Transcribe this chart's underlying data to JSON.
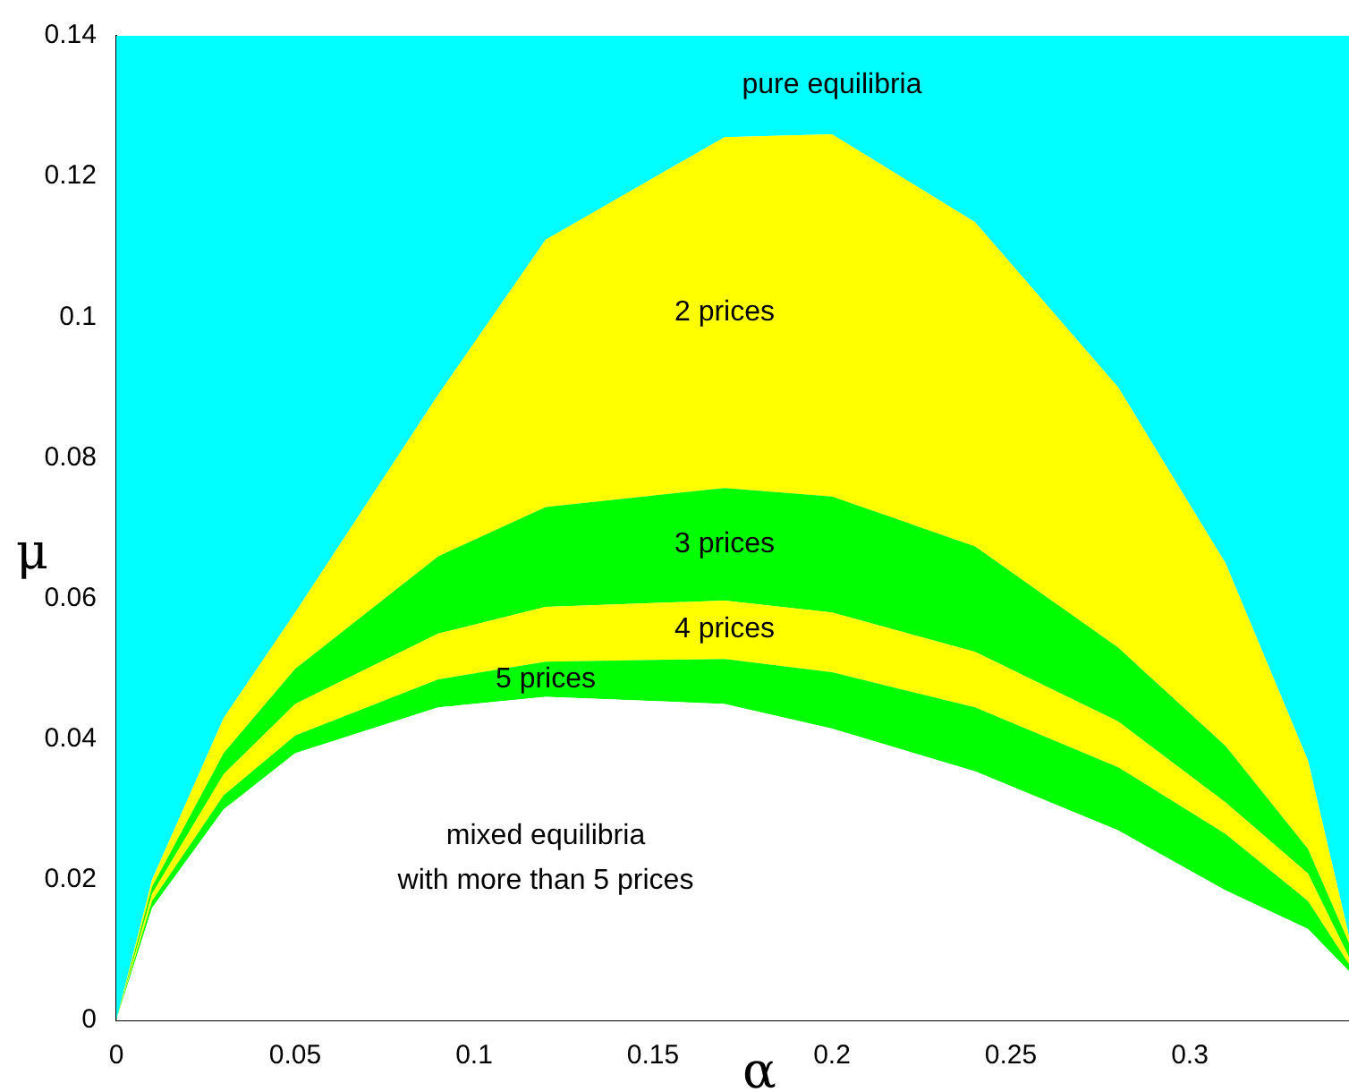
{
  "chart_data": {
    "type": "area",
    "xlabel": "α",
    "ylabel": "μ",
    "x": [
      0,
      0.01,
      0.03,
      0.05,
      0.09,
      0.12,
      0.17,
      0.2,
      0.24,
      0.28,
      0.31,
      0.333,
      0.3445
    ],
    "series": [
      {
        "name": "mixed equilibria\nwith more than 5 prices",
        "color": "#ffffff",
        "values": [
          0,
          0.016,
          0.03,
          0.038,
          0.0445,
          0.046,
          0.045,
          0.0415,
          0.0354,
          0.027,
          0.0185,
          0.013,
          0.007
        ]
      },
      {
        "name": "5 prices",
        "color": "#00ff00",
        "values": [
          0,
          0.017,
          0.032,
          0.0405,
          0.0485,
          0.051,
          0.0514,
          0.0495,
          0.0445,
          0.036,
          0.0265,
          0.017,
          0.008
        ]
      },
      {
        "name": "4 prices",
        "color": "#ffff00",
        "values": [
          0,
          0.018,
          0.035,
          0.045,
          0.055,
          0.0588,
          0.0597,
          0.058,
          0.0524,
          0.0425,
          0.031,
          0.0209,
          0.009
        ]
      },
      {
        "name": "3 prices",
        "color": "#00ff00",
        "values": [
          0,
          0.019,
          0.038,
          0.05,
          0.066,
          0.073,
          0.0757,
          0.0745,
          0.0674,
          0.053,
          0.039,
          0.0244,
          0.011
        ]
      },
      {
        "name": "2 prices",
        "color": "#ffff00",
        "values": [
          0,
          0.02,
          0.043,
          0.058,
          0.089,
          0.111,
          0.1256,
          0.126,
          0.1135,
          0.09,
          0.065,
          0.037,
          0.012
        ]
      },
      {
        "name": "pure equilibria",
        "color": "#00ffff",
        "values": [
          0.14,
          0.14,
          0.14,
          0.14,
          0.14,
          0.14,
          0.14,
          0.14,
          0.14,
          0.14,
          0.14,
          0.14,
          0.14
        ]
      }
    ],
    "xlim": [
      0,
      0.3445
    ],
    "xticks": [
      0,
      0.05,
      0.1,
      0.15,
      0.2,
      0.25,
      0.3
    ],
    "ylim": [
      0,
      0.14
    ],
    "yticks": [
      0,
      0.02,
      0.04,
      0.06,
      0.08,
      0.1,
      0.12,
      0.14
    ],
    "grid": false,
    "legend": false
  }
}
